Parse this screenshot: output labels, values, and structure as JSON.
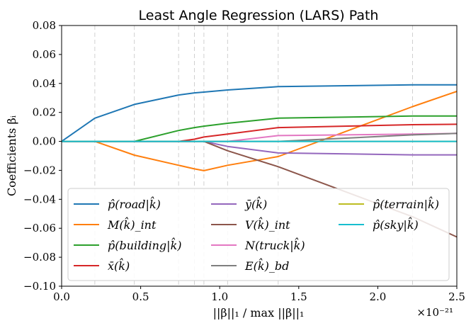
{
  "chart_data": {
    "type": "line",
    "title": "Least Angle Regression (LARS) Path",
    "xlabel": "||β||₁ / max ||β||₁",
    "ylabel": "Coefficients βᵢ",
    "x_scale_label": "×10⁻²¹",
    "xlim": [
      0,
      2.5
    ],
    "ylim": [
      -0.1,
      0.08
    ],
    "xticks": [
      0.0,
      0.5,
      1.0,
      1.5,
      2.0,
      2.5
    ],
    "xtick_labels": [
      "0.0",
      "0.5",
      "1.0",
      "1.5",
      "2.0",
      "2.5"
    ],
    "yticks": [
      -0.1,
      -0.08,
      -0.06,
      -0.04,
      -0.02,
      0.0,
      0.02,
      0.04,
      0.06,
      0.08
    ],
    "ytick_labels": [
      "−0.10",
      "−0.08",
      "−0.06",
      "−0.04",
      "−0.02",
      "0.00",
      "0.02",
      "0.04",
      "0.06",
      "0.08"
    ],
    "breakpoints": [
      0.21,
      0.46,
      0.74,
      0.84,
      0.9,
      1.05,
      1.37,
      2.22
    ],
    "grid": "vertical dashed at breakpoints",
    "legend_position": "lower-center",
    "legend_columns": 3,
    "series": [
      {
        "name": "p̂(road|k̂)",
        "color": "#1f77b4",
        "x": [
          0,
          0.21,
          0.46,
          0.74,
          0.84,
          0.9,
          1.05,
          1.37,
          2.22,
          2.5
        ],
        "y": [
          0,
          0.016,
          0.0255,
          0.032,
          0.0335,
          0.034,
          0.0355,
          0.0378,
          0.039,
          0.039
        ]
      },
      {
        "name": "M(k̂)_int",
        "color": "#ff7f0e",
        "x": [
          0,
          0.21,
          0.46,
          0.74,
          0.84,
          0.9,
          1.05,
          1.37,
          2.22,
          2.5
        ],
        "y": [
          0,
          0,
          -0.0095,
          -0.0165,
          -0.019,
          -0.0202,
          -0.0165,
          -0.0105,
          0.024,
          0.0345
        ]
      },
      {
        "name": "p̂(building|k̂)",
        "color": "#2ca02c",
        "x": [
          0,
          0.46,
          0.74,
          0.84,
          0.9,
          1.05,
          1.37,
          2.22,
          2.5
        ],
        "y": [
          0,
          0,
          0.0075,
          0.0095,
          0.0105,
          0.0125,
          0.016,
          0.0175,
          0.0175
        ]
      },
      {
        "name": "x̄(k̂)",
        "color": "#d62728",
        "x": [
          0,
          0.74,
          0.84,
          0.9,
          1.05,
          1.37,
          2.22,
          2.5
        ],
        "y": [
          0,
          0,
          0.0015,
          0.003,
          0.005,
          0.0095,
          0.0115,
          0.0118
        ]
      },
      {
        "name": "ȳ(k̂)",
        "color": "#9467bd",
        "x": [
          0,
          0.9,
          1.05,
          1.37,
          2.22,
          2.5
        ],
        "y": [
          0,
          0,
          -0.0035,
          -0.008,
          -0.0093,
          -0.0093
        ]
      },
      {
        "name": "V(k̂)_int",
        "color": "#8c564b",
        "x": [
          0,
          0.9,
          1.05,
          1.37,
          2.22,
          2.5
        ],
        "y": [
          0,
          0,
          -0.0065,
          -0.0175,
          -0.052,
          -0.066
        ]
      },
      {
        "name": "N(truck|k̂)",
        "color": "#e377c2",
        "x": [
          0,
          1.05,
          1.37,
          2.22,
          2.5
        ],
        "y": [
          0,
          0,
          0.004,
          0.005,
          0.0055
        ]
      },
      {
        "name": "E(k̂)_bd",
        "color": "#7f7f7f",
        "x": [
          0,
          1.37,
          2.22,
          2.5
        ],
        "y": [
          0,
          0,
          0.0045,
          0.0055
        ]
      },
      {
        "name": "p̂(terrain|k̂)",
        "color": "#bcbd22",
        "x": [
          0,
          2.5
        ],
        "y": [
          0,
          0
        ]
      },
      {
        "name": "p̂(sky|k̂)",
        "color": "#17becf",
        "x": [
          0,
          2.5
        ],
        "y": [
          0,
          0
        ]
      }
    ]
  }
}
